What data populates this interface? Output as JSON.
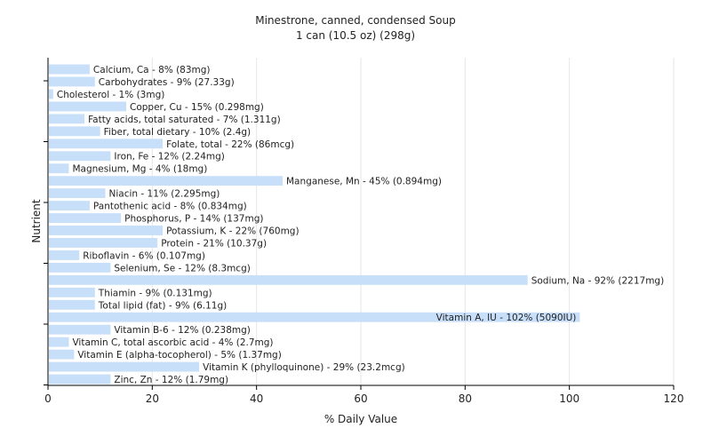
{
  "chart_data": {
    "type": "bar",
    "orientation": "horizontal",
    "title": "Minestrone, canned, condensed Soup",
    "subtitle": "1 can (10.5 oz) (298g)",
    "xlabel": "% Daily Value",
    "ylabel": "Nutrient",
    "xlim": [
      0,
      120
    ],
    "xticks": [
      "0",
      "20",
      "40",
      "60",
      "80",
      "100",
      "120"
    ],
    "grid": true,
    "bar_color": "#c8dffa",
    "categories": [
      "Calcium, Ca - 8% (83mg)",
      "Carbohydrates - 9% (27.33g)",
      "Cholesterol - 1% (3mg)",
      "Copper, Cu - 15% (0.298mg)",
      "Fatty acids, total saturated - 7% (1.311g)",
      "Fiber, total dietary - 10% (2.4g)",
      "Folate, total - 22% (86mcg)",
      "Iron, Fe - 12% (2.24mg)",
      "Magnesium, Mg - 4% (18mg)",
      "Manganese, Mn - 45% (0.894mg)",
      "Niacin - 11% (2.295mg)",
      "Pantothenic acid - 8% (0.834mg)",
      "Phosphorus, P - 14% (137mg)",
      "Potassium, K - 22% (760mg)",
      "Protein - 21% (10.37g)",
      "Riboflavin - 6% (0.107mg)",
      "Selenium, Se - 12% (8.3mcg)",
      "Sodium, Na - 92% (2217mg)",
      "Thiamin - 9% (0.131mg)",
      "Total lipid (fat) - 9% (6.11g)",
      "Vitamin A, IU - 102% (5090IU)",
      "Vitamin B-6 - 12% (0.238mg)",
      "Vitamin C, total ascorbic acid - 4% (2.7mg)",
      "Vitamin E (alpha-tocopherol) - 5% (1.37mg)",
      "Vitamin K (phylloquinone) - 29% (23.2mcg)",
      "Zinc, Zn - 12% (1.79mg)"
    ],
    "values": [
      8,
      9,
      1,
      15,
      7,
      10,
      22,
      12,
      4,
      45,
      11,
      8,
      14,
      22,
      21,
      6,
      12,
      92,
      9,
      9,
      102,
      12,
      4,
      5,
      29,
      12
    ]
  }
}
